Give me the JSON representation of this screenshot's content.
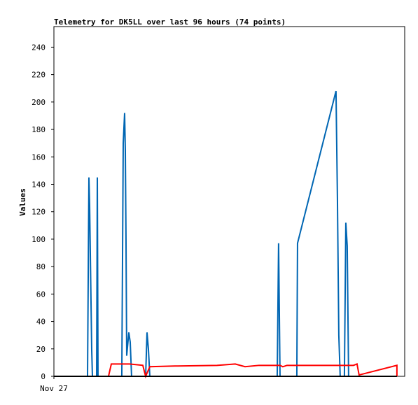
{
  "chart_data": {
    "type": "line",
    "title": "Telemetry for DK5LL over last 96 hours (74 points)",
    "y_label": "Values",
    "xlim": [
      0,
      96
    ],
    "xticks": [
      {
        "value": 0,
        "label": "Nov 27"
      }
    ],
    "ylim": [
      0,
      255
    ],
    "yticks": [
      0,
      20,
      40,
      60,
      80,
      100,
      120,
      140,
      160,
      180,
      200,
      220,
      240
    ],
    "series": [
      {
        "color": "#0066b3",
        "x": [
          9.2,
          9.58,
          9.77,
          9.96,
          10.15,
          10.34,
          10.54,
          11.69,
          11.88,
          12.07,
          18.58,
          18.97,
          19.35,
          19.54,
          19.73,
          19.92,
          20.5,
          20.88,
          21.26,
          25.1,
          25.48,
          25.86,
          26.25,
          61.11,
          61.49,
          61.88,
          66.48,
          66.67,
          77.2,
          77.59,
          77.97,
          78.35,
          79.5,
          79.89,
          80.27,
          80.65
        ],
        "values": [
          0,
          145,
          125,
          90,
          55,
          20,
          0,
          0,
          145,
          0,
          0,
          170,
          192,
          165,
          100,
          15,
          32,
          25,
          0,
          0,
          32,
          20,
          0,
          0,
          97,
          0,
          0,
          97,
          208,
          130,
          30,
          0,
          0,
          112,
          95,
          0
        ]
      },
      {
        "color": "#ff0000",
        "x": [
          14.94,
          15.71,
          20.69,
          24.33,
          25.1,
          26.25,
          33.14,
          44.64,
          49.62,
          52.3,
          56.13,
          61.88,
          62.64,
          63.79,
          81.99,
          82.95,
          83.52,
          93.87,
          93.87
        ],
        "values": [
          0,
          9,
          9,
          8,
          0,
          7,
          7.5,
          8,
          9,
          7,
          8,
          8,
          7,
          8,
          8,
          9,
          1,
          8,
          0
        ]
      },
      {
        "color": "#000000",
        "x": [
          0,
          93.87
        ],
        "values": [
          0,
          0
        ]
      }
    ]
  }
}
